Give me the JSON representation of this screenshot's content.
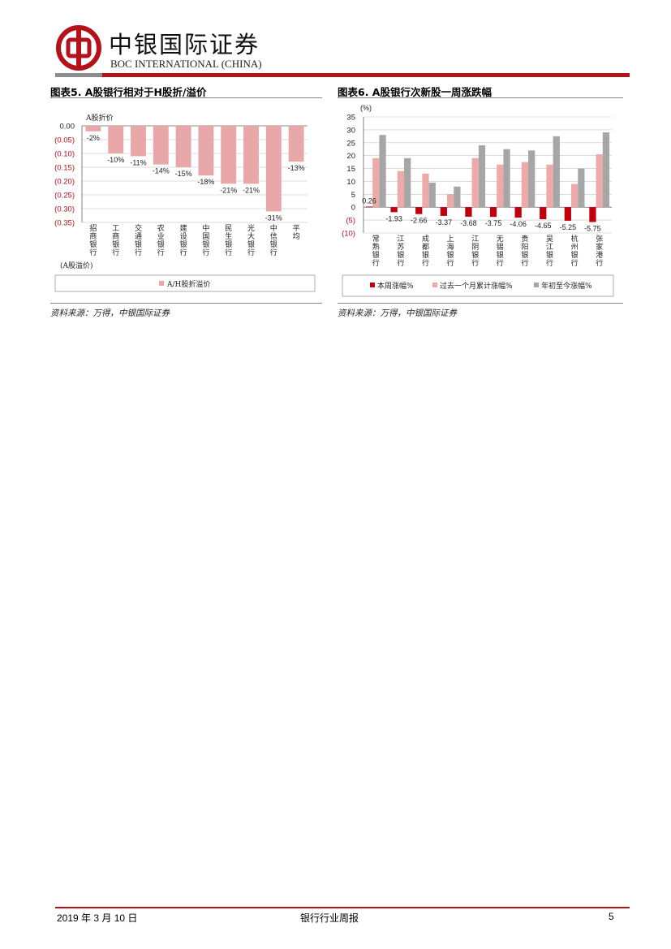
{
  "header": {
    "company_cn": "中银国际证券",
    "company_en": "BOC INTERNATIONAL (CHINA)",
    "colors": {
      "brand_red": "#b4121b",
      "gray": "#8c8c8c"
    }
  },
  "figure5": {
    "title": "图表5. A股银行相对于H股折/溢价",
    "source": "资料来源：万得，中银国际证券",
    "chart_data": {
      "type": "bar",
      "ylabel_top": "A股折价",
      "ylabel_bottom": "(A股溢价)",
      "categories": [
        "招商银行",
        "工商银行",
        "交通银行",
        "农业银行",
        "建设银行",
        "中国银行",
        "民生银行",
        "光大银行",
        "中信银行",
        "平均"
      ],
      "series": [
        {
          "name": "A/H股折溢价",
          "values": [
            -0.02,
            -0.1,
            -0.11,
            -0.14,
            -0.15,
            -0.18,
            -0.21,
            -0.21,
            -0.31,
            -0.13
          ],
          "color": "#e8a7a8"
        }
      ],
      "data_labels": [
        "-2%",
        "-10%",
        "-11%",
        "-14%",
        "-15%",
        "-18%",
        "-21%",
        "-21%",
        "-31%",
        "-13%"
      ],
      "yticks": [
        "0.00",
        "(0.05)",
        "(0.10)",
        "(0.15)",
        "(0.20)",
        "(0.25)",
        "(0.30)",
        "(0.35)"
      ],
      "ytick_values": [
        0,
        -0.05,
        -0.1,
        -0.15,
        -0.2,
        -0.25,
        -0.3,
        -0.35
      ],
      "ylim": [
        -0.35,
        0
      ],
      "grid": true,
      "legend_position": "bottom"
    }
  },
  "figure6": {
    "title": "图表6. A股银行次新股一周涨跌幅",
    "source": "资料来源：万得，中银国际证券",
    "chart_data": {
      "type": "bar",
      "yunit": "(%)",
      "categories": [
        "常熟银行",
        "江苏银行",
        "成都银行",
        "上海银行",
        "江阴银行",
        "无锡银行",
        "贵阳银行",
        "吴江银行",
        "杭州银行",
        "张家港行"
      ],
      "series": [
        {
          "name": "本周涨幅%",
          "values": [
            0.26,
            -1.93,
            -2.66,
            -3.37,
            -3.68,
            -3.75,
            -4.06,
            -4.65,
            -5.25,
            -5.75
          ],
          "color": "#c0000b"
        },
        {
          "name": "过去一个月累计涨幅%",
          "values": [
            19,
            14,
            13,
            5,
            19,
            16.5,
            17.5,
            16.5,
            9,
            20.5
          ],
          "color": "#eeaaa9"
        },
        {
          "name": "年初至今涨幅%",
          "values": [
            28,
            19,
            9.5,
            8,
            24,
            22.5,
            22,
            27.5,
            15,
            29
          ],
          "color": "#a6a6a6"
        }
      ],
      "data_labels": [
        "0.26",
        "-1.93",
        "-2.66",
        "-3.37",
        "-3.68",
        "-3.75",
        "-4.06",
        "-4.65",
        "-5.25",
        "-5.75"
      ],
      "yticks": [
        "35",
        "30",
        "25",
        "20",
        "15",
        "10",
        "5",
        "0",
        "(5)",
        "(10)"
      ],
      "ytick_values": [
        35,
        30,
        25,
        20,
        15,
        10,
        5,
        0,
        -5,
        -10
      ],
      "ylim": [
        -10,
        35
      ],
      "grid": true,
      "legend_position": "bottom"
    }
  },
  "footer": {
    "date": "2019 年 3 月 10 日",
    "report_title": "银行行业周报",
    "page": "5"
  }
}
